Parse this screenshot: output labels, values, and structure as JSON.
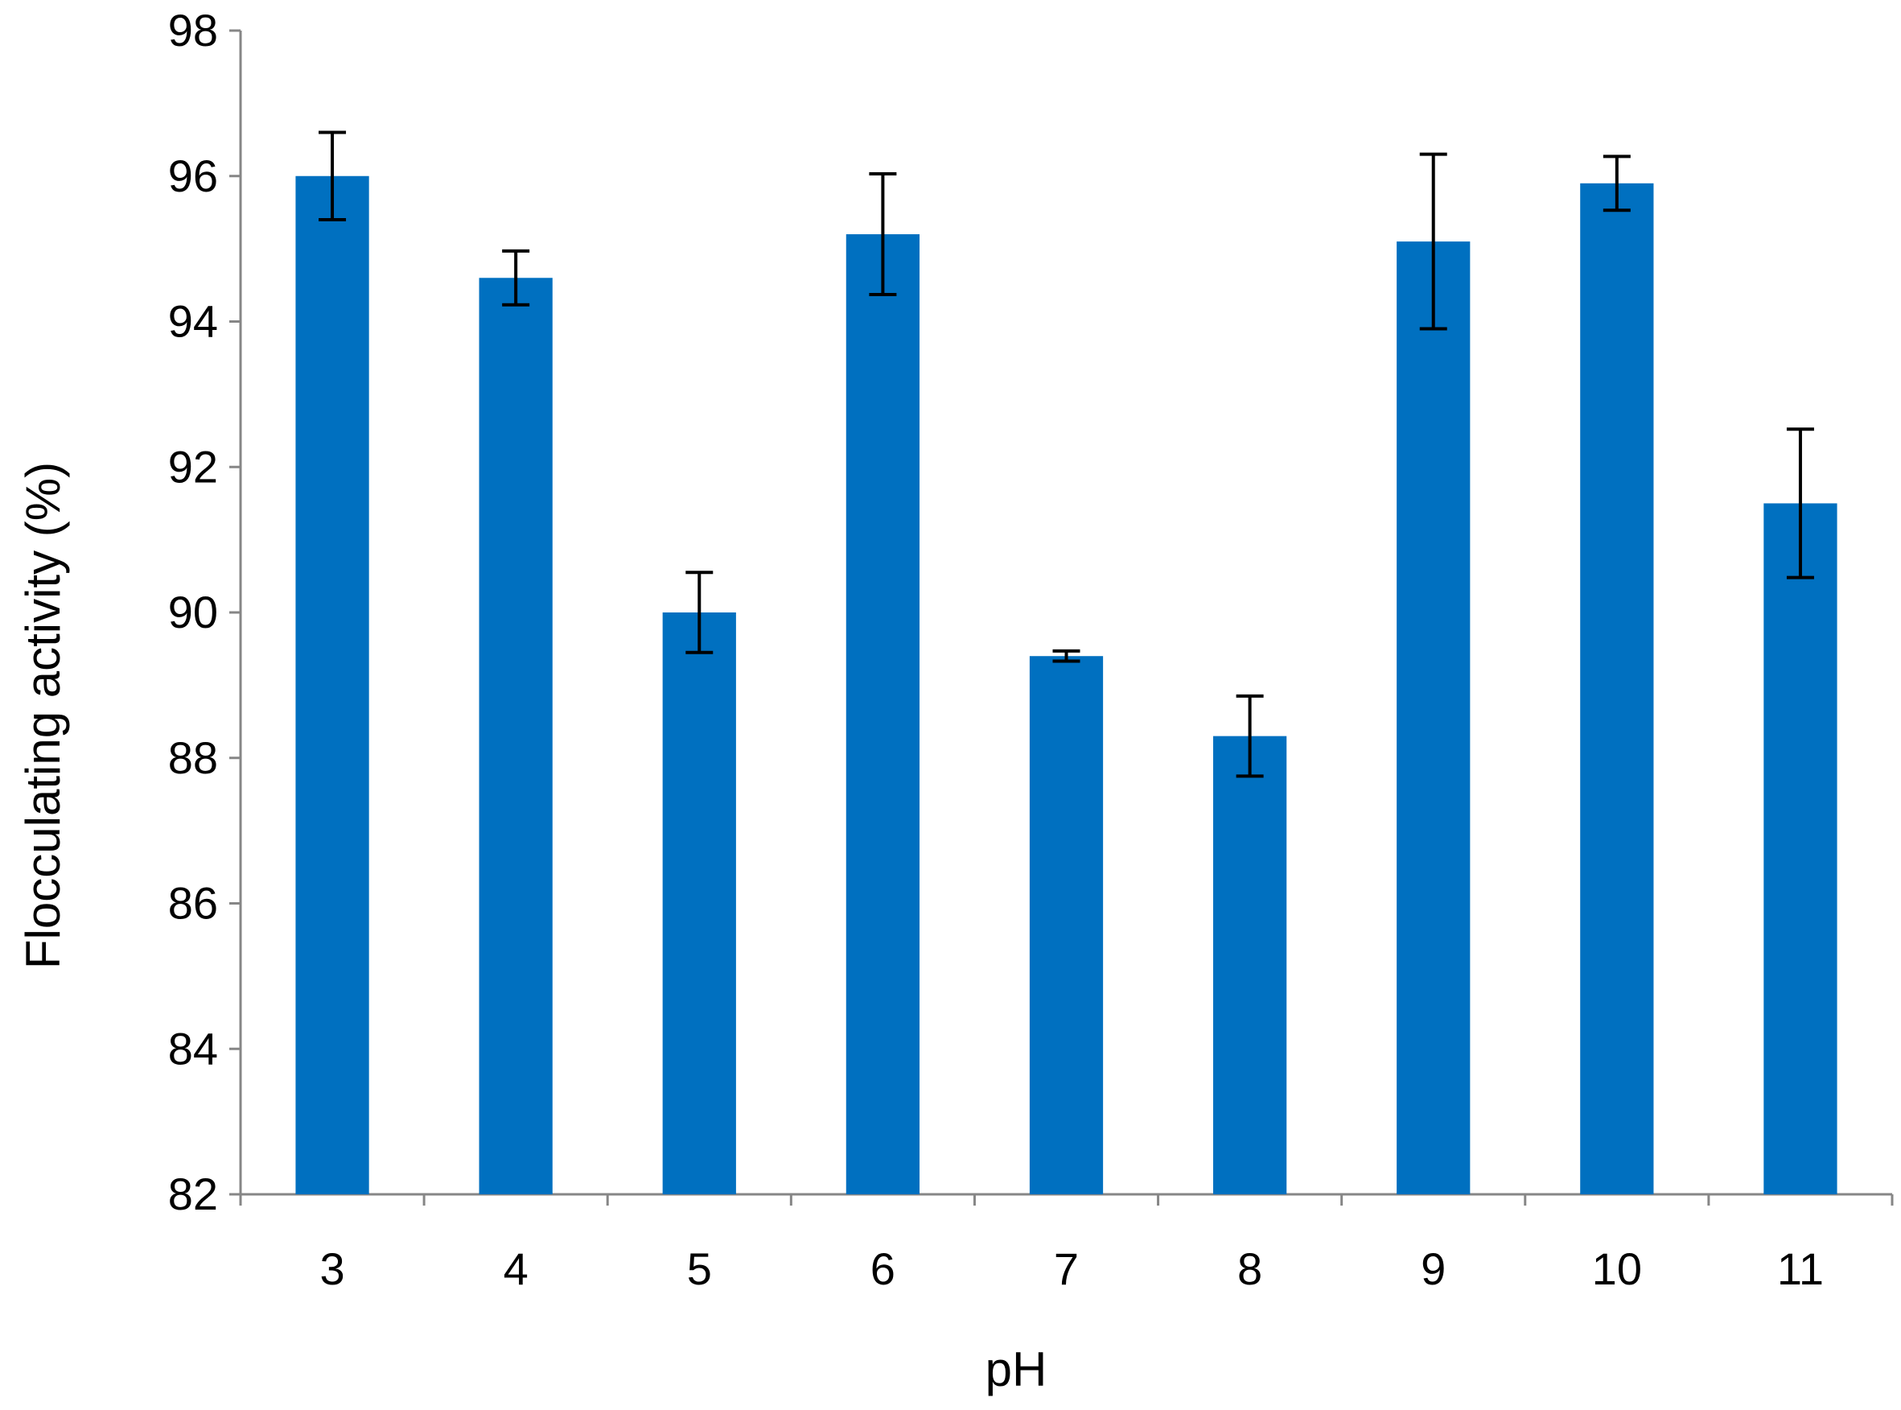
{
  "chart_data": {
    "type": "bar",
    "title": "",
    "xlabel": "pH",
    "ylabel": "Flocculating activity (%)",
    "categories": [
      "3",
      "4",
      "5",
      "6",
      "7",
      "8",
      "9",
      "10",
      "11"
    ],
    "values": [
      96.0,
      94.6,
      90.0,
      95.2,
      89.4,
      88.3,
      95.1,
      95.9,
      91.5
    ],
    "error": [
      0.6,
      0.37,
      0.55,
      0.83,
      0.07,
      0.55,
      1.2,
      0.37,
      1.02
    ],
    "ylim": [
      82,
      98
    ],
    "yticks": [
      "82",
      "84",
      "86",
      "88",
      "90",
      "92",
      "94",
      "96",
      "98"
    ],
    "grid": false,
    "legend": "none",
    "colors": {
      "bar": "#0070C0",
      "axis": "#868686",
      "error_bar": "#000000"
    }
  }
}
